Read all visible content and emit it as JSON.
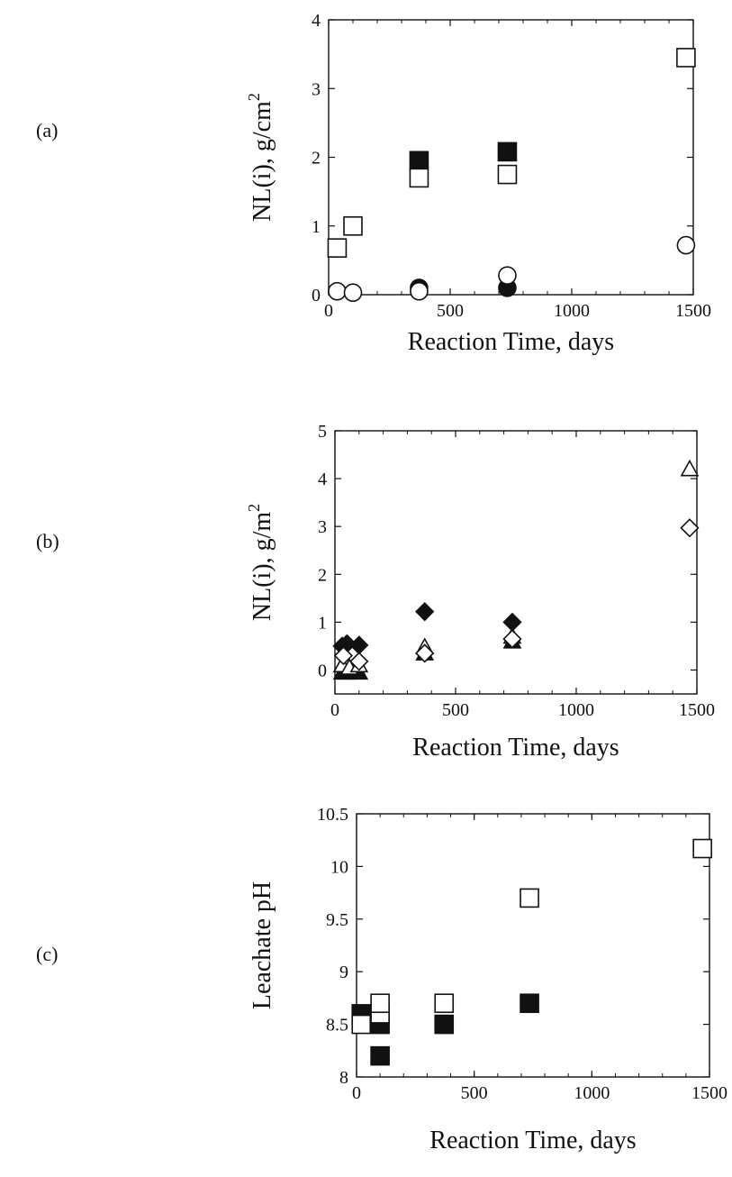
{
  "panel_labels": [
    "(a)",
    "(b)",
    "(c)"
  ],
  "chart_data": [
    {
      "type": "scatter",
      "title": "",
      "xlabel": "Reaction Time, days",
      "ylabel_parts": [
        "NL(i), g/cm",
        "2"
      ],
      "xlim": [
        0,
        1500
      ],
      "ylim": [
        0,
        4
      ],
      "xticks": [
        0,
        500,
        1000,
        1500
      ],
      "yticks": [
        0,
        1,
        2,
        3,
        4
      ],
      "grid": false,
      "series": [
        {
          "marker": "square",
          "filled": true,
          "points": [
            [
              372,
              1.95
            ],
            [
              735,
              2.08
            ]
          ]
        },
        {
          "marker": "square",
          "filled": false,
          "points": [
            [
              35,
              0.68
            ],
            [
              100,
              1.0
            ],
            [
              372,
              1.7
            ],
            [
              735,
              1.75
            ],
            [
              1470,
              3.45
            ]
          ]
        },
        {
          "marker": "circle",
          "filled": true,
          "points": [
            [
              372,
              0.1
            ],
            [
              735,
              0.1
            ]
          ]
        },
        {
          "marker": "circle",
          "filled": false,
          "points": [
            [
              35,
              0.05
            ],
            [
              100,
              0.03
            ],
            [
              372,
              0.05
            ],
            [
              735,
              0.28
            ],
            [
              1470,
              0.72
            ]
          ]
        }
      ]
    },
    {
      "type": "scatter",
      "title": "",
      "xlabel": "Reaction Time, days",
      "ylabel_parts": [
        "NL(i), g/m",
        "2"
      ],
      "xlim": [
        0,
        1500
      ],
      "ylim": [
        -0.5,
        5
      ],
      "xticks": [
        0,
        500,
        1000,
        1500
      ],
      "yticks": [
        0,
        1,
        2,
        3,
        4,
        5
      ],
      "grid": false,
      "series": [
        {
          "marker": "diamond",
          "filled": true,
          "points": [
            [
              30,
              0.5
            ],
            [
              50,
              0.55
            ],
            [
              100,
              0.52
            ],
            [
              372,
              1.22
            ],
            [
              735,
              1.0
            ]
          ]
        },
        {
          "marker": "triangle",
          "filled": true,
          "points": [
            [
              30,
              -0.05
            ],
            [
              50,
              -0.05
            ],
            [
              100,
              -0.05
            ],
            [
              372,
              0.35
            ],
            [
              735,
              0.6
            ]
          ]
        },
        {
          "marker": "triangle",
          "filled": false,
          "points": [
            [
              30,
              0.1
            ],
            [
              60,
              0.05
            ],
            [
              100,
              0.1
            ],
            [
              372,
              0.48
            ],
            [
              735,
              0.7
            ],
            [
              1470,
              4.2
            ]
          ]
        },
        {
          "marker": "diamond",
          "filled": false,
          "points": [
            [
              35,
              0.3
            ],
            [
              100,
              0.18
            ],
            [
              372,
              0.35
            ],
            [
              735,
              0.65
            ],
            [
              1470,
              2.97
            ]
          ]
        }
      ]
    },
    {
      "type": "scatter",
      "title": "",
      "xlabel": "Reaction Time, days",
      "ylabel": "Leachate pH",
      "xlim": [
        0,
        1500
      ],
      "ylim": [
        8,
        10.5
      ],
      "xticks": [
        0,
        500,
        1000,
        1500
      ],
      "yticks": [
        8,
        8.5,
        9,
        9.5,
        10,
        10.5
      ],
      "ytick_labels": [
        "8",
        "8.5",
        "9",
        "9.5",
        "10",
        "10.5"
      ],
      "grid": false,
      "series": [
        {
          "marker": "square",
          "filled": true,
          "points": [
            [
              20,
              8.6
            ],
            [
              100,
              8.5
            ],
            [
              100,
              8.2
            ],
            [
              372,
              8.5
            ],
            [
              735,
              8.7
            ]
          ]
        },
        {
          "marker": "square",
          "filled": false,
          "points": [
            [
              20,
              8.5
            ],
            [
              100,
              8.6
            ],
            [
              100,
              8.7
            ],
            [
              372,
              8.7
            ],
            [
              735,
              9.7
            ],
            [
              1470,
              10.17
            ]
          ]
        }
      ]
    }
  ]
}
